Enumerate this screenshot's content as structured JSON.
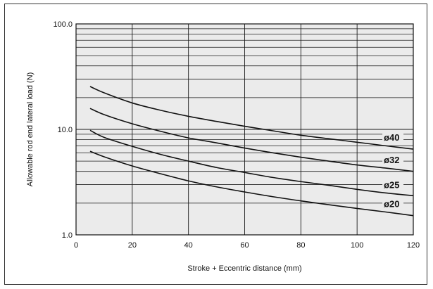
{
  "chart_data": {
    "type": "line",
    "title": "",
    "xlabel": "Stroke + Eccentric distance (mm)",
    "ylabel": "Allowable rod end lateral load (N)",
    "xlim": [
      0,
      120
    ],
    "ylim": [
      1,
      100
    ],
    "y_scale": "log",
    "grid": true,
    "legend": "inline labels at right end of curves",
    "x_ticks": [
      0,
      20,
      40,
      60,
      80,
      100,
      120
    ],
    "x_tick_labels": [
      "0",
      "20",
      "40",
      "60",
      "80",
      "100",
      "120"
    ],
    "y_tick_values": [
      1,
      10,
      100
    ],
    "y_tick_labels": [
      "1.0",
      "10.0",
      "100.0"
    ],
    "colors": {
      "background": "#ebebeb",
      "grid": "#1a1a1a",
      "line": "#111111"
    },
    "series": [
      {
        "name": "ø40",
        "x": [
          5,
          10,
          20,
          30,
          40,
          50,
          60,
          70,
          80,
          90,
          100,
          110,
          120
        ],
        "y": [
          25.5,
          22.2,
          17.8,
          15.2,
          13.3,
          11.9,
          10.7,
          9.7,
          8.8,
          8.15,
          7.55,
          7.0,
          6.5
        ]
      },
      {
        "name": "ø32",
        "x": [
          5,
          10,
          20,
          30,
          40,
          50,
          60,
          70,
          80,
          90,
          100,
          110,
          120
        ],
        "y": [
          15.8,
          13.8,
          11.3,
          9.6,
          8.3,
          7.45,
          6.65,
          6.0,
          5.45,
          5.0,
          4.6,
          4.3,
          4.0
        ]
      },
      {
        "name": "ø25",
        "x": [
          5,
          10,
          20,
          30,
          40,
          50,
          60,
          70,
          80,
          90,
          100,
          110,
          120
        ],
        "y": [
          9.8,
          8.4,
          6.9,
          5.8,
          5.0,
          4.35,
          3.9,
          3.5,
          3.2,
          2.95,
          2.7,
          2.5,
          2.35
        ]
      },
      {
        "name": "ø20",
        "x": [
          5,
          10,
          20,
          30,
          40,
          50,
          60,
          70,
          80,
          90,
          100,
          110,
          120
        ],
        "y": [
          6.2,
          5.5,
          4.5,
          3.8,
          3.25,
          2.85,
          2.55,
          2.3,
          2.1,
          1.93,
          1.78,
          1.65,
          1.52
        ]
      }
    ]
  }
}
